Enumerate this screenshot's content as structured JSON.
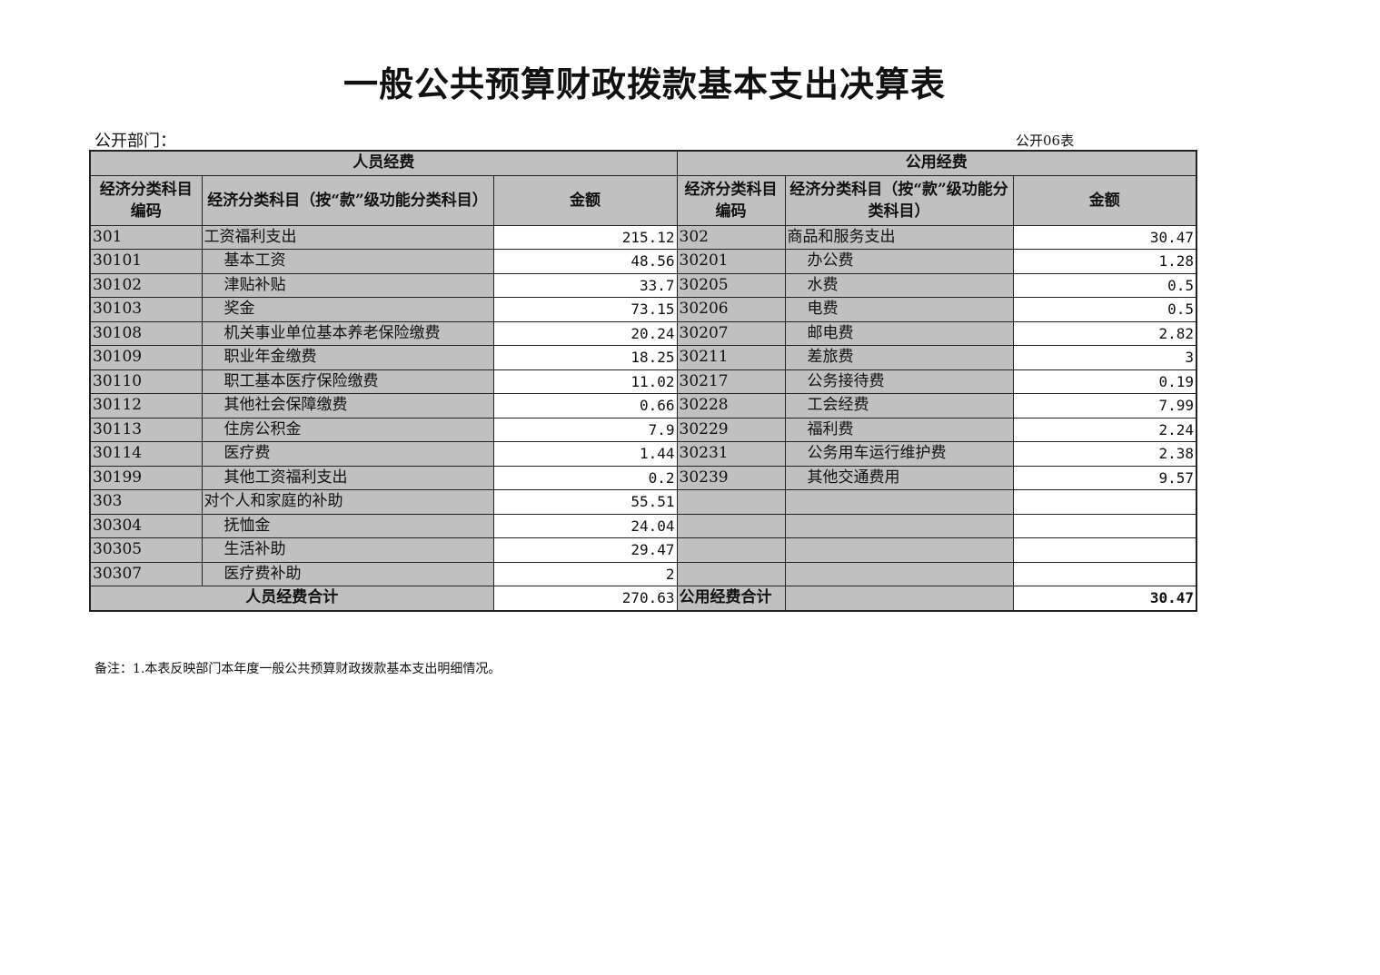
{
  "title": "一般公共预算财政拨款基本支出决算表",
  "department_label": "公开部门：",
  "table_code": "公开06表",
  "headers": {
    "personnel": "人员经费",
    "public": "公用经费",
    "code": "经济分类科目编码",
    "name_left": "经济分类科目（按“款”级功能分类科目）",
    "name_right": "经济分类科目（按“款”级功能分类科目）",
    "amount": "金额"
  },
  "rows": [
    {
      "lc": "301",
      "ln": "工资福利支出",
      "la": "215.12",
      "rc": "302",
      "rn": "商品和服务支出",
      "ra": "30.47"
    },
    {
      "lc": "30101",
      "ln": "基本工资",
      "la": "48.56",
      "rc": "30201",
      "rn": "办公费",
      "ra": "1.28"
    },
    {
      "lc": "30102",
      "ln": "津贴补贴",
      "la": "33.7",
      "rc": "30205",
      "rn": "水费",
      "ra": "0.5"
    },
    {
      "lc": "30103",
      "ln": "奖金",
      "la": "73.15",
      "rc": "30206",
      "rn": "电费",
      "ra": "0.5"
    },
    {
      "lc": "30108",
      "ln": "机关事业单位基本养老保险缴费",
      "la": "20.24",
      "rc": "30207",
      "rn": "邮电费",
      "ra": "2.82"
    },
    {
      "lc": "30109",
      "ln": "职业年金缴费",
      "la": "18.25",
      "rc": "30211",
      "rn": "差旅费",
      "ra": "3"
    },
    {
      "lc": "30110",
      "ln": "职工基本医疗保险缴费",
      "la": "11.02",
      "rc": "30217",
      "rn": "公务接待费",
      "ra": "0.19"
    },
    {
      "lc": "30112",
      "ln": "其他社会保障缴费",
      "la": "0.66",
      "rc": "30228",
      "rn": "工会经费",
      "ra": "7.99"
    },
    {
      "lc": "30113",
      "ln": "住房公积金",
      "la": "7.9",
      "rc": "30229",
      "rn": "福利费",
      "ra": "2.24"
    },
    {
      "lc": "30114",
      "ln": "医疗费",
      "la": "1.44",
      "rc": "30231",
      "rn": "公务用车运行维护费",
      "ra": "2.38"
    },
    {
      "lc": "30199",
      "ln": "其他工资福利支出",
      "la": "0.2",
      "rc": "30239",
      "rn": "其他交通费用",
      "ra": "9.57"
    },
    {
      "lc": "303",
      "ln": "对个人和家庭的补助",
      "la": "55.51",
      "rc": "",
      "rn": "",
      "ra": ""
    },
    {
      "lc": "30304",
      "ln": "抚恤金",
      "la": "24.04",
      "rc": "",
      "rn": "",
      "ra": ""
    },
    {
      "lc": "30305",
      "ln": "生活补助",
      "la": "29.47",
      "rc": "",
      "rn": "",
      "ra": ""
    },
    {
      "lc": "30307",
      "ln": "医疗费补助",
      "la": "2",
      "rc": "",
      "rn": "",
      "ra": ""
    }
  ],
  "totals": {
    "personnel_label": "人员经费合计",
    "personnel_amount": "270.63",
    "public_label": "公用经费合计",
    "public_amount": "30.47"
  },
  "note": "备注：1.本表反映部门本年度一般公共预算财政拨款基本支出明细情况。"
}
